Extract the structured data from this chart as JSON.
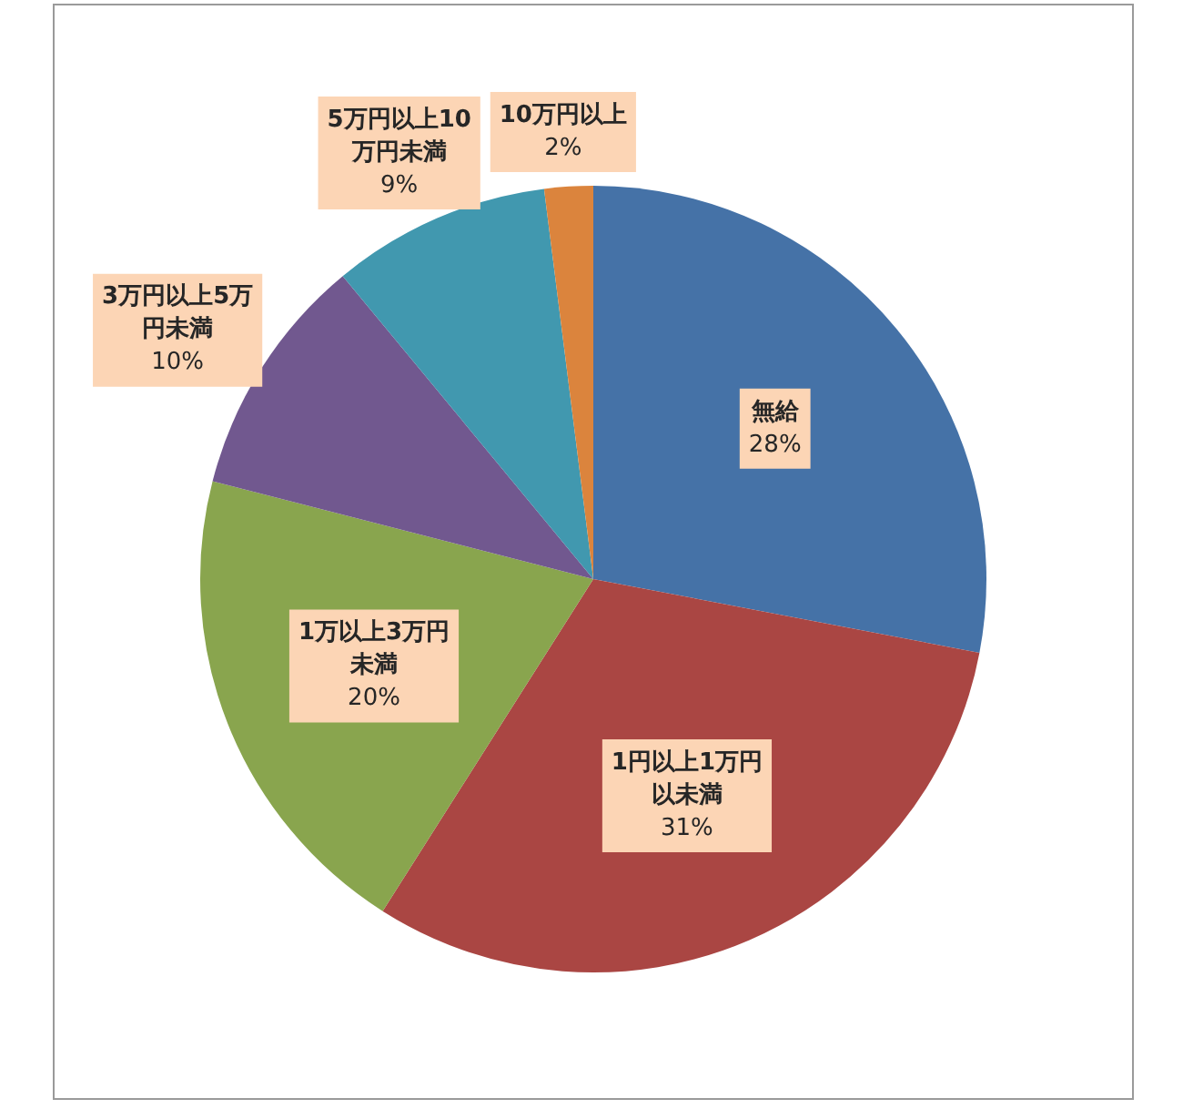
{
  "chart_data": {
    "type": "pie",
    "categories": [
      "無給",
      "1円以上1万円以未満",
      "1万以上3万円未満",
      "3万円以上5万円未満",
      "5万円以上10万円未満",
      "10万円以上"
    ],
    "values": [
      28,
      31,
      20,
      10,
      9,
      2
    ],
    "value_labels": [
      "28%",
      "31%",
      "20%",
      "10%",
      "9%",
      "2%"
    ],
    "colors": [
      "#4572a7",
      "#aa4643",
      "#89a54e",
      "#71588f",
      "#4198af",
      "#db843d"
    ]
  }
}
